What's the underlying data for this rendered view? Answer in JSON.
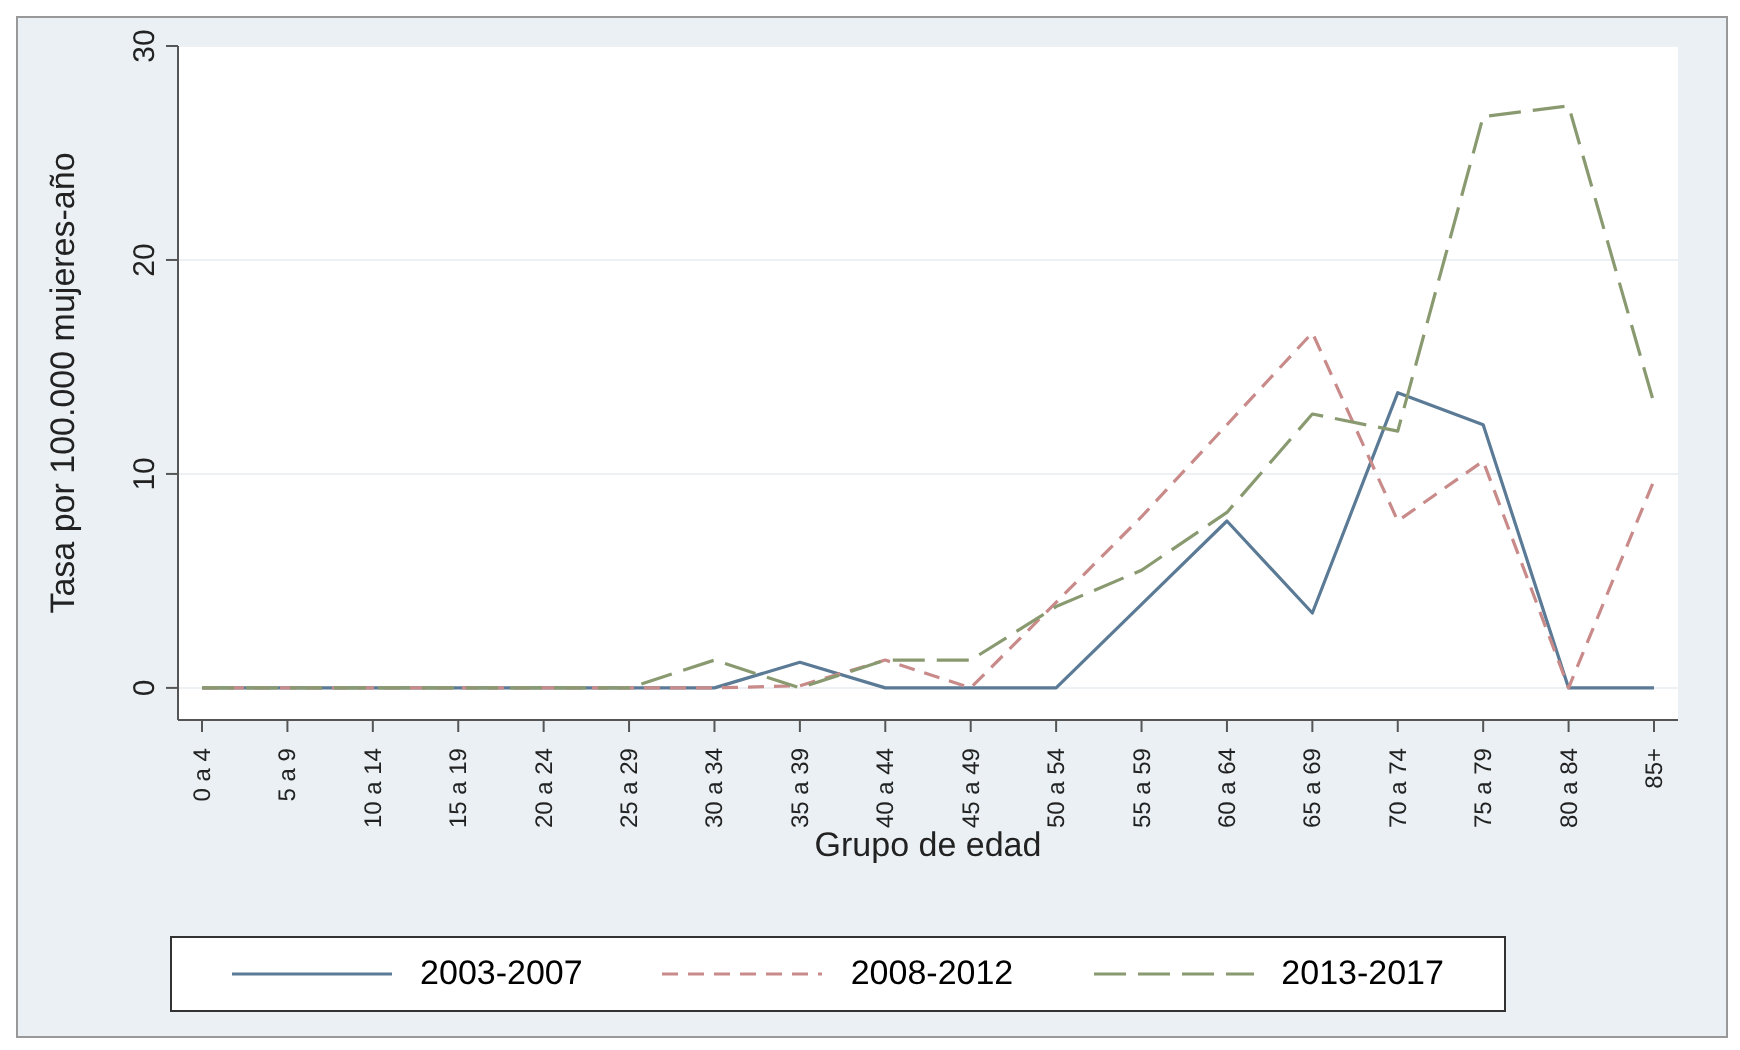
{
  "chart_data": {
    "type": "line",
    "xlabel": "Grupo de edad",
    "ylabel": "Tasa por 100.000 mujeres-año",
    "categories": [
      "0 a 4",
      "5 a 9",
      "10 a 14",
      "15 a 19",
      "20 a 24",
      "25 a 29",
      "30 a 34",
      "35 a 39",
      "40 a 44",
      "45 a 49",
      "50 a 54",
      "55 a 59",
      "60 a 64",
      "65 a 69",
      "70 a 74",
      "75 a 79",
      "80 a 84",
      "85+"
    ],
    "series": [
      {
        "name": "2003-2007",
        "color": "#5a7a95",
        "line_style": "solid",
        "values": [
          0,
          0,
          0,
          0,
          0,
          0,
          0,
          1.2,
          0,
          0,
          0,
          3.9,
          7.8,
          3.5,
          13.8,
          12.3,
          0,
          0
        ]
      },
      {
        "name": "2008-2012",
        "color": "#c98a8a",
        "line_style": "dashed",
        "values": [
          0,
          0,
          0,
          0,
          0,
          0,
          0,
          0.1,
          1.3,
          0,
          4,
          8,
          12.3,
          16.6,
          7.8,
          10.6,
          0,
          9.7
        ]
      },
      {
        "name": "2013-2017",
        "color": "#8a9a70",
        "line_style": "dashed",
        "values": [
          0,
          0,
          0,
          0,
          0,
          0,
          1.3,
          0,
          1.3,
          1.3,
          3.8,
          5.5,
          8.2,
          12.8,
          12,
          26.7,
          27.2,
          13.3
        ]
      }
    ],
    "ylim": [
      -1.5,
      30
    ],
    "yticks": [
      0,
      10,
      20,
      30
    ],
    "grid": "y",
    "legend": "bottom",
    "marker": "none"
  }
}
